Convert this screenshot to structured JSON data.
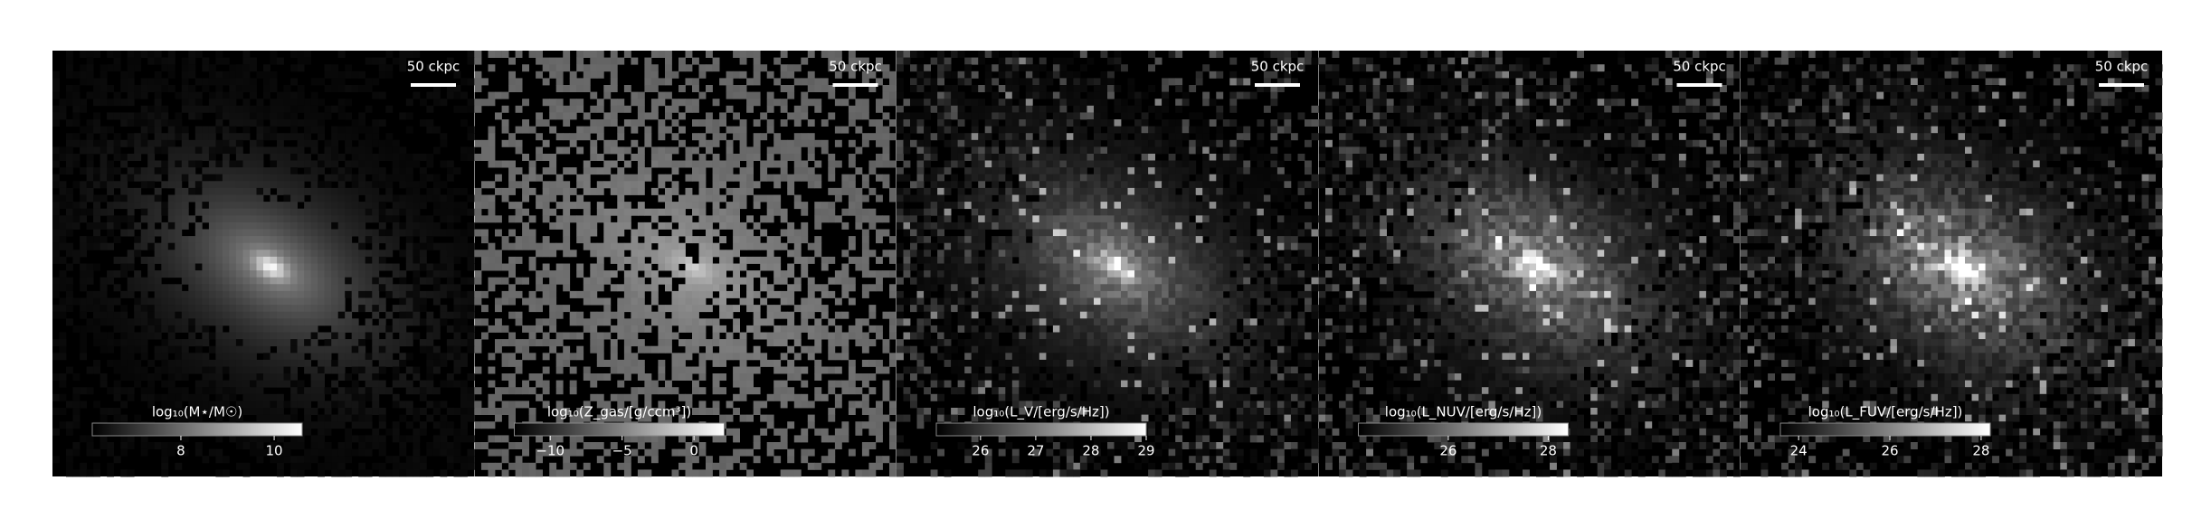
{
  "chart_data": [
    {
      "type": "image",
      "scalebar_label": "50 ckpc",
      "colorbar_label": "log₁₀(M⋆/M☉)",
      "clim": [
        6.1,
        10.6
      ],
      "cticks": [
        8,
        10
      ]
    },
    {
      "type": "image",
      "scalebar_label": "50 ckpc",
      "colorbar_label": "log₁₀(Z_gas/[g/ccm³])",
      "clim": [
        -12.5,
        2.1
      ],
      "cticks": [
        {
          "value": -10,
          "label": "−10"
        },
        {
          "value": -5,
          "label": "−5"
        },
        0
      ]
    },
    {
      "type": "image",
      "scalebar_label": "50 ckpc",
      "colorbar_label": "log₁₀(L_V/[erg/s/Hz])",
      "clim": [
        25.2,
        29
      ],
      "cticks": [
        26,
        27,
        28,
        29
      ]
    },
    {
      "type": "image",
      "scalebar_label": "50 ckpc",
      "colorbar_label": "log₁₀(L_NUV/[erg/s/Hz])",
      "clim": [
        24.2,
        28.4
      ],
      "cticks": [
        26,
        28
      ]
    },
    {
      "type": "image",
      "scalebar_label": "50 ckpc",
      "colorbar_label": "log₁₀(L_FUV/[erg/s/Hz])",
      "clim": [
        23.6,
        28.2
      ],
      "cticks": [
        24,
        26,
        28
      ]
    }
  ]
}
